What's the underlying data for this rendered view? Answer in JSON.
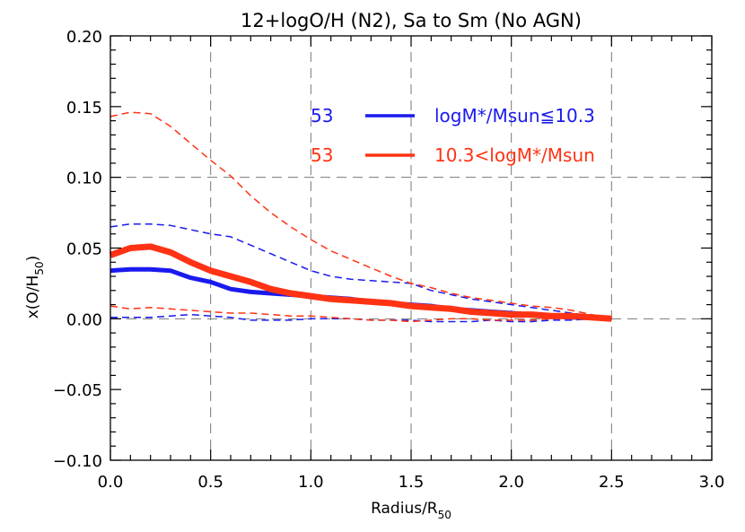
{
  "chart_data": {
    "type": "line",
    "title": "12+logO/H (N2), Sa to Sm (No AGN)",
    "xlabel": "Radius/R",
    "xlabel_sub": "50",
    "ylabel": "x(O/H",
    "ylabel_sub": "50",
    "ylabel_close": ")",
    "xlim": [
      0.0,
      3.0
    ],
    "ylim": [
      -0.1,
      0.2
    ],
    "xticks": [
      0.0,
      0.5,
      1.0,
      1.5,
      2.0,
      2.5,
      3.0
    ],
    "xtick_labels": [
      "0.0",
      "0.5",
      "1.0",
      "1.5",
      "2.0",
      "2.5",
      "3.0"
    ],
    "yticks": [
      -0.1,
      -0.05,
      0.0,
      0.05,
      0.1,
      0.15,
      0.2
    ],
    "ytick_labels": [
      "−0.10",
      "−0.05",
      "0.00",
      "0.05",
      "0.10",
      "0.15",
      "0.20"
    ],
    "grid_x": [
      0.5,
      1.0,
      1.5,
      2.0,
      2.5
    ],
    "grid_y": [
      0.0,
      0.1
    ],
    "legend_position": "top-right",
    "legend": [
      {
        "count": "53",
        "label": "logM*/Msun≦10.3",
        "color": "#1a1aee"
      },
      {
        "count": "53",
        "label": "10.3<logM*/Msun",
        "color": "#ff3314"
      }
    ],
    "x": [
      0.0,
      0.1,
      0.2,
      0.3,
      0.4,
      0.5,
      0.6,
      0.7,
      0.8,
      0.9,
      1.0,
      1.1,
      1.2,
      1.3,
      1.4,
      1.5,
      1.6,
      1.7,
      1.8,
      1.9,
      2.0,
      2.1,
      2.2,
      2.3,
      2.4,
      2.5
    ],
    "series": [
      {
        "name": "low-mass median",
        "group": 0,
        "style": "solid",
        "color": "#1a1aee",
        "values": [
          0.034,
          0.035,
          0.035,
          0.034,
          0.029,
          0.026,
          0.021,
          0.019,
          0.018,
          0.017,
          0.016,
          0.015,
          0.014,
          0.012,
          0.011,
          0.01,
          0.009,
          0.007,
          0.006,
          0.005,
          0.004,
          0.003,
          0.002,
          0.001,
          0.0005,
          0.0
        ]
      },
      {
        "name": "low-mass upper",
        "group": 0,
        "style": "dashed",
        "color": "#1a1aee",
        "values": [
          0.065,
          0.067,
          0.067,
          0.066,
          0.063,
          0.06,
          0.058,
          0.052,
          0.046,
          0.04,
          0.034,
          0.03,
          0.028,
          0.027,
          0.026,
          0.025,
          0.02,
          0.017,
          0.014,
          0.012,
          0.01,
          0.008,
          0.006,
          0.004,
          0.002,
          0.0
        ]
      },
      {
        "name": "low-mass lower",
        "group": 0,
        "style": "dashed",
        "color": "#1a1aee",
        "values": [
          0.001,
          0.001,
          0.001,
          0.002,
          0.003,
          0.002,
          0.001,
          -0.001,
          -0.001,
          -0.001,
          0.0,
          0.0,
          0.0,
          -0.001,
          -0.001,
          -0.001,
          -0.002,
          -0.002,
          -0.002,
          -0.001,
          -0.002,
          -0.002,
          -0.001,
          -0.001,
          0.0,
          0.0
        ]
      },
      {
        "name": "high-mass median",
        "group": 1,
        "style": "solid",
        "color": "#ff3314",
        "values": [
          0.045,
          0.05,
          0.051,
          0.047,
          0.04,
          0.034,
          0.03,
          0.026,
          0.021,
          0.018,
          0.016,
          0.014,
          0.013,
          0.012,
          0.011,
          0.009,
          0.008,
          0.007,
          0.005,
          0.004,
          0.003,
          0.003,
          0.002,
          0.002,
          0.001,
          0.0
        ]
      },
      {
        "name": "high-mass upper",
        "group": 1,
        "style": "dashed",
        "color": "#ff3314",
        "values": [
          0.143,
          0.146,
          0.145,
          0.136,
          0.124,
          0.112,
          0.101,
          0.087,
          0.075,
          0.065,
          0.056,
          0.048,
          0.042,
          0.036,
          0.03,
          0.025,
          0.022,
          0.018,
          0.015,
          0.013,
          0.011,
          0.009,
          0.008,
          0.006,
          0.003,
          0.0
        ]
      },
      {
        "name": "high-mass lower",
        "group": 1,
        "style": "dashed",
        "color": "#ff3314",
        "values": [
          0.009,
          0.007,
          0.008,
          0.007,
          0.006,
          0.005,
          0.004,
          0.004,
          0.003,
          0.002,
          0.002,
          0.001,
          0.0,
          -0.001,
          -0.001,
          -0.002,
          -0.001,
          0.0,
          0.0,
          -0.001,
          -0.001,
          -0.001,
          0.0,
          0.0,
          0.0,
          0.0
        ]
      }
    ]
  }
}
